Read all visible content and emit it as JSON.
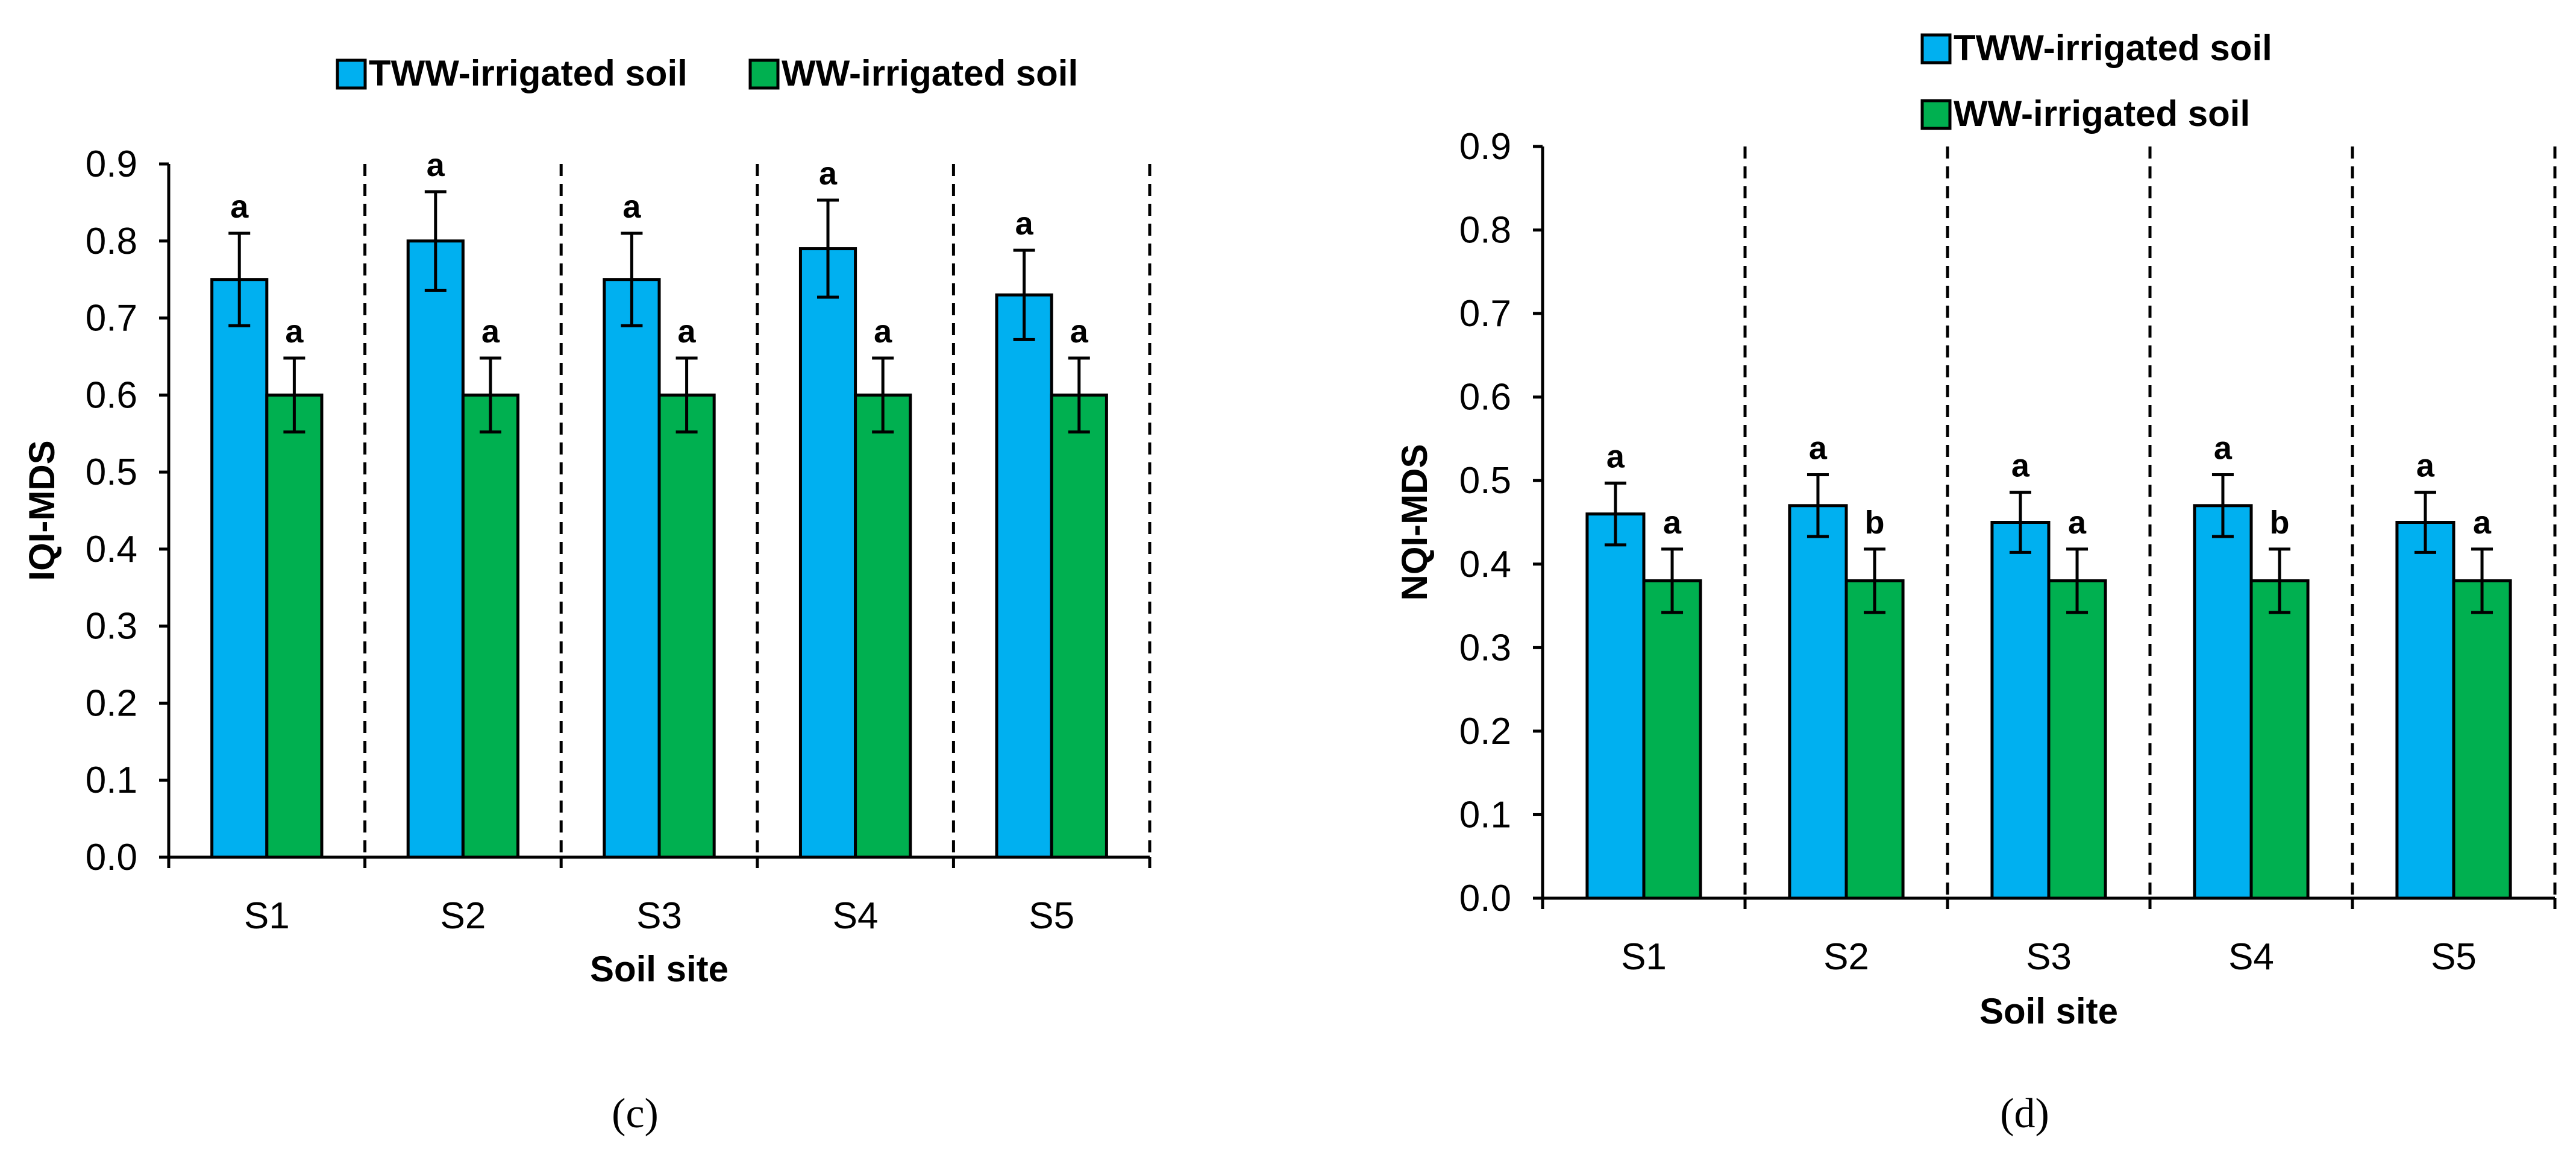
{
  "colors": {
    "tww": "#00b0f0",
    "ww": "#00b050",
    "axis": "#000000"
  },
  "chart_data": [
    {
      "type": "bar",
      "panel": "c",
      "panel_label": "(c)",
      "xlabel": "Soil site",
      "ylabel": "IQI-MDS",
      "ylim": [
        0,
        0.9
      ],
      "yticks": [
        "0.0",
        "0.1",
        "0.2",
        "0.3",
        "0.4",
        "0.5",
        "0.6",
        "0.7",
        "0.8",
        "0.9"
      ],
      "categories": [
        "S1",
        "S2",
        "S3",
        "S4",
        "S5"
      ],
      "legend_placement": "top, horizontal",
      "series": [
        {
          "name": "TWW-irrigated soil",
          "values": [
            0.75,
            0.8,
            0.75,
            0.79,
            0.73
          ],
          "errors": [
            0.06,
            0.064,
            0.06,
            0.063,
            0.058
          ],
          "letters": [
            "a",
            "a",
            "a",
            "a",
            "a"
          ]
        },
        {
          "name": "WW-irrigated soil",
          "values": [
            0.6,
            0.6,
            0.6,
            0.6,
            0.6
          ],
          "errors": [
            0.048,
            0.048,
            0.048,
            0.048,
            0.048
          ],
          "letters": [
            "a",
            "a",
            "a",
            "a",
            "a"
          ]
        }
      ]
    },
    {
      "type": "bar",
      "panel": "d",
      "panel_label": "(d)",
      "xlabel": "Soil site",
      "ylabel": "NQI-MDS",
      "ylim": [
        0,
        0.9
      ],
      "yticks": [
        "0.0",
        "0.1",
        "0.2",
        "0.3",
        "0.4",
        "0.5",
        "0.6",
        "0.7",
        "0.8",
        "0.9"
      ],
      "categories": [
        "S1",
        "S2",
        "S3",
        "S4",
        "S5"
      ],
      "legend_placement": "top, stacked",
      "series": [
        {
          "name": "TWW-irrigated soil",
          "values": [
            0.46,
            0.47,
            0.45,
            0.47,
            0.45
          ],
          "errors": [
            0.037,
            0.037,
            0.036,
            0.037,
            0.036
          ],
          "letters": [
            "a",
            "a",
            "a",
            "a",
            "a"
          ]
        },
        {
          "name": "WW-irrigated soil",
          "values": [
            0.38,
            0.38,
            0.38,
            0.38,
            0.38
          ],
          "errors": [
            0.038,
            0.038,
            0.038,
            0.038,
            0.038
          ],
          "letters": [
            "a",
            "b",
            "a",
            "b",
            "a"
          ]
        }
      ]
    }
  ]
}
